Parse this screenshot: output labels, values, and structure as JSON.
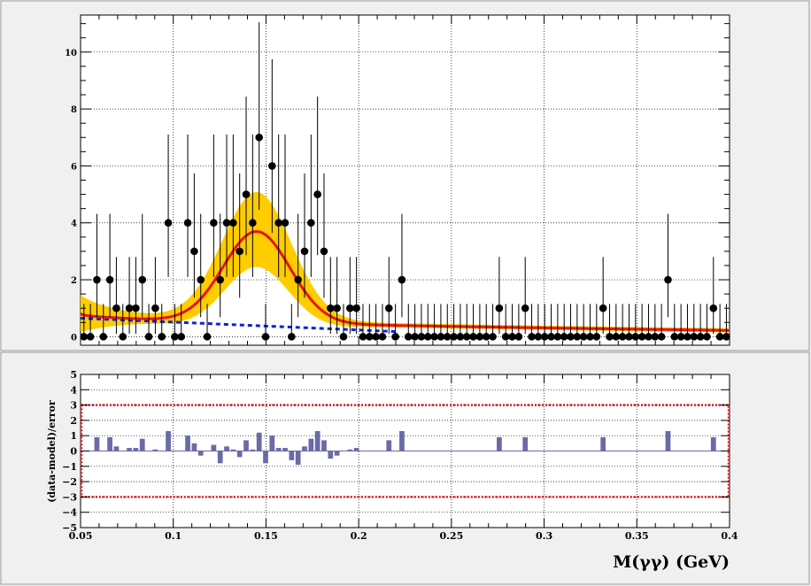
{
  "colors": {
    "band": "#ffcc00",
    "fit": "#e8141c",
    "background_model": "#0b22d6",
    "points": "#000000",
    "residual_bar": "#6a6aa8",
    "residual_limit": "#e8141c"
  },
  "chart_data": [
    {
      "type": "scatter",
      "title": "",
      "xlabel": "",
      "ylabel": "",
      "xlim": [
        0.05,
        0.4
      ],
      "ylim": [
        -0.3,
        11.3
      ],
      "grid": true,
      "yticks": [
        0,
        2,
        4,
        6,
        8,
        10
      ],
      "ytick_labels": [
        "0",
        "2",
        "4",
        "6",
        "8",
        "10"
      ],
      "x": [
        0.0518,
        0.0553,
        0.0588,
        0.0623,
        0.0658,
        0.0693,
        0.0728,
        0.0763,
        0.0798,
        0.0833,
        0.0868,
        0.0903,
        0.0938,
        0.0973,
        0.1008,
        0.1043,
        0.1078,
        0.1113,
        0.1148,
        0.1183,
        0.1218,
        0.1253,
        0.1288,
        0.1323,
        0.1358,
        0.1393,
        0.1428,
        0.1463,
        0.1498,
        0.1533,
        0.1568,
        0.1603,
        0.1638,
        0.1673,
        0.1708,
        0.1743,
        0.1778,
        0.1813,
        0.1848,
        0.1883,
        0.1918,
        0.1953,
        0.1988,
        0.2023,
        0.2058,
        0.2093,
        0.2128,
        0.2163,
        0.2198,
        0.2233,
        0.2268,
        0.2303,
        0.2338,
        0.2373,
        0.2408,
        0.2443,
        0.2478,
        0.2513,
        0.2548,
        0.2583,
        0.2618,
        0.2653,
        0.2688,
        0.2723,
        0.2758,
        0.2793,
        0.2828,
        0.2863,
        0.2898,
        0.2933,
        0.2968,
        0.3003,
        0.3038,
        0.3073,
        0.3108,
        0.3143,
        0.3178,
        0.3213,
        0.3248,
        0.3283,
        0.3318,
        0.3353,
        0.3388,
        0.3423,
        0.3458,
        0.3493,
        0.3528,
        0.3563,
        0.3598,
        0.3633,
        0.3668,
        0.3703,
        0.3738,
        0.3773,
        0.3808,
        0.3843,
        0.3878,
        0.3913,
        0.3948,
        0.3983
      ],
      "y": [
        0,
        0,
        2,
        0,
        2,
        1,
        0,
        1,
        1,
        2,
        0,
        1,
        0,
        4,
        0,
        0,
        4,
        3,
        2,
        0,
        4,
        2,
        4,
        4,
        3,
        5,
        4,
        7,
        0,
        6,
        4,
        4,
        0,
        2,
        3,
        4,
        5,
        3,
        1,
        1,
        0,
        1,
        1,
        0,
        0,
        0,
        0,
        1,
        0,
        2,
        0,
        0,
        0,
        0,
        0,
        0,
        0,
        0,
        0,
        0,
        0,
        0,
        0,
        0,
        1,
        0,
        0,
        0,
        1,
        0,
        0,
        0,
        0,
        0,
        0,
        0,
        0,
        0,
        0,
        0,
        1,
        0,
        0,
        0,
        0,
        0,
        0,
        0,
        0,
        0,
        2,
        0,
        0,
        0,
        0,
        0,
        0,
        1,
        0,
        0
      ],
      "fit_curve": {
        "name": "",
        "amplitude": 3.2,
        "mean": 0.145,
        "sigma": 0.018,
        "baseline_start": 0.8,
        "baseline_end": 0.22
      },
      "background_curve": {
        "name": "",
        "start": 0.65,
        "end": 0.18,
        "x_end": 0.22
      }
    },
    {
      "type": "bar",
      "title": "",
      "xlabel": "M(γγ) (GeV)",
      "ylabel": "(data-model)/error",
      "xlim": [
        0.05,
        0.4
      ],
      "ylim": [
        -5,
        5
      ],
      "grid": true,
      "xticks": [
        0.05,
        0.1,
        0.15,
        0.2,
        0.25,
        0.3,
        0.35,
        0.4
      ],
      "xtick_labels": [
        "0.05",
        "0.1",
        "0.15",
        "0.2",
        "0.25",
        "0.3",
        "0.35",
        "0.4"
      ],
      "yticks": [
        -5,
        -4,
        -3,
        -2,
        -1,
        0,
        1,
        2,
        3,
        4,
        5
      ],
      "ytick_labels": [
        "−5",
        "−4",
        "−3",
        "−2",
        "−1",
        "0",
        "1",
        "2",
        "3",
        "4",
        "5"
      ],
      "limits": [
        -3,
        3
      ],
      "x": [
        0.0518,
        0.0553,
        0.0588,
        0.0623,
        0.0658,
        0.0693,
        0.0728,
        0.0763,
        0.0798,
        0.0833,
        0.0868,
        0.0903,
        0.0938,
        0.0973,
        0.1008,
        0.1043,
        0.1078,
        0.1113,
        0.1148,
        0.1183,
        0.1218,
        0.1253,
        0.1288,
        0.1323,
        0.1358,
        0.1393,
        0.1428,
        0.1463,
        0.1498,
        0.1533,
        0.1568,
        0.1603,
        0.1638,
        0.1673,
        0.1708,
        0.1743,
        0.1778,
        0.1813,
        0.1848,
        0.1883,
        0.1918,
        0.1953,
        0.1988,
        0.2023,
        0.2058,
        0.2093,
        0.2128,
        0.2163,
        0.2198,
        0.2233,
        0.2268,
        0.2303,
        0.2338,
        0.2373,
        0.2408,
        0.2443,
        0.2478,
        0.2513,
        0.2548,
        0.2583,
        0.2618,
        0.2653,
        0.2688,
        0.2723,
        0.2758,
        0.2793,
        0.2828,
        0.2863,
        0.2898,
        0.2933,
        0.2968,
        0.3003,
        0.3038,
        0.3073,
        0.3108,
        0.3143,
        0.3178,
        0.3213,
        0.3248,
        0.3283,
        0.3318,
        0.3353,
        0.3388,
        0.3423,
        0.3458,
        0.3493,
        0.3528,
        0.3563,
        0.3598,
        0.3633,
        0.3668,
        0.3703,
        0.3738,
        0.3773,
        0.3808,
        0.3843,
        0.3878,
        0.3913,
        0.3948,
        0.3983
      ],
      "values": [
        0,
        0,
        0.9,
        0,
        0.9,
        0.3,
        0,
        0.2,
        0.2,
        0.8,
        0,
        0.1,
        0,
        1.3,
        0,
        0,
        1.0,
        0.5,
        -0.3,
        0,
        0.4,
        -0.8,
        0.3,
        0.1,
        -0.4,
        0.7,
        0.1,
        1.2,
        -0.8,
        1.0,
        0.2,
        0.2,
        -0.6,
        -0.9,
        0.3,
        0.8,
        1.3,
        0.7,
        -0.5,
        -0.3,
        0,
        0.1,
        0.2,
        0,
        0,
        0,
        0,
        0.7,
        0,
        1.3,
        0,
        0,
        0,
        0,
        0,
        0,
        0,
        0,
        0,
        0,
        0,
        0,
        0,
        0,
        0.9,
        0,
        0,
        0,
        0.9,
        0,
        0,
        0,
        0,
        0,
        0,
        0,
        0,
        0,
        0,
        0,
        0.9,
        0,
        0,
        0,
        0,
        0,
        0,
        0,
        0,
        0,
        1.3,
        0,
        0,
        0,
        0,
        0,
        0,
        0.9,
        0,
        0
      ]
    }
  ]
}
